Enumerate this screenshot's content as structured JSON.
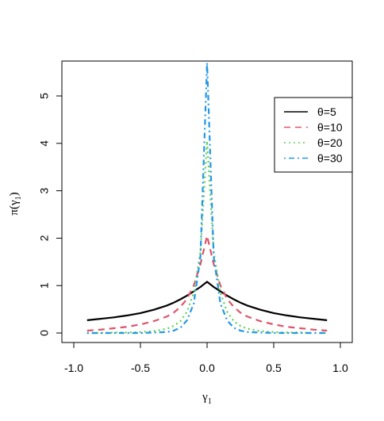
{
  "chart_data": {
    "type": "line",
    "xlabel": "γ1",
    "ylabel": "π(γ1)",
    "xlim": [
      -1.0,
      1.0
    ],
    "ylim": [
      0,
      5.7
    ],
    "xticks": [
      "-1.0",
      "-0.5",
      "0.0",
      "0.5",
      "1.0"
    ],
    "yticks": [
      "0",
      "1",
      "2",
      "3",
      "4",
      "5"
    ],
    "grid": false,
    "legend_position": "top-right",
    "x": [
      -0.9,
      -0.8,
      -0.7,
      -0.6,
      -0.5,
      -0.4,
      -0.3,
      -0.25,
      -0.2,
      -0.15,
      -0.1,
      -0.05,
      0.0,
      0.05,
      0.1,
      0.15,
      0.2,
      0.25,
      0.3,
      0.4,
      0.5,
      0.6,
      0.7,
      0.8,
      0.9
    ],
    "series": [
      {
        "name": "θ=5",
        "color": "#000000",
        "dash": "solid",
        "values": [
          0.27,
          0.3,
          0.33,
          0.37,
          0.42,
          0.49,
          0.58,
          0.64,
          0.71,
          0.79,
          0.88,
          0.97,
          1.08,
          0.97,
          0.88,
          0.79,
          0.71,
          0.64,
          0.58,
          0.49,
          0.42,
          0.37,
          0.33,
          0.3,
          0.27
        ]
      },
      {
        "name": "θ=10",
        "color": "#DF536B",
        "dash": "dashed",
        "values": [
          0.05,
          0.07,
          0.1,
          0.13,
          0.18,
          0.25,
          0.35,
          0.43,
          0.55,
          0.72,
          1.0,
          1.45,
          2.05,
          1.45,
          1.0,
          0.72,
          0.55,
          0.43,
          0.35,
          0.25,
          0.18,
          0.13,
          0.1,
          0.07,
          0.05
        ]
      },
      {
        "name": "θ=20",
        "color": "#61D04F",
        "dash": "dotted",
        "values": [
          0.0,
          0.0,
          0.01,
          0.01,
          0.02,
          0.04,
          0.09,
          0.15,
          0.25,
          0.45,
          0.85,
          1.7,
          4.05,
          1.7,
          0.85,
          0.45,
          0.25,
          0.15,
          0.09,
          0.04,
          0.02,
          0.01,
          0.01,
          0.0,
          0.0
        ]
      },
      {
        "name": "θ=30",
        "color": "#2297E6",
        "dash": "dotdash",
        "values": [
          0.0,
          0.0,
          0.0,
          0.0,
          0.0,
          0.01,
          0.02,
          0.05,
          0.11,
          0.27,
          0.62,
          1.6,
          5.7,
          1.6,
          0.62,
          0.27,
          0.11,
          0.05,
          0.02,
          0.01,
          0.0,
          0.0,
          0.0,
          0.0,
          0.0
        ]
      }
    ]
  }
}
